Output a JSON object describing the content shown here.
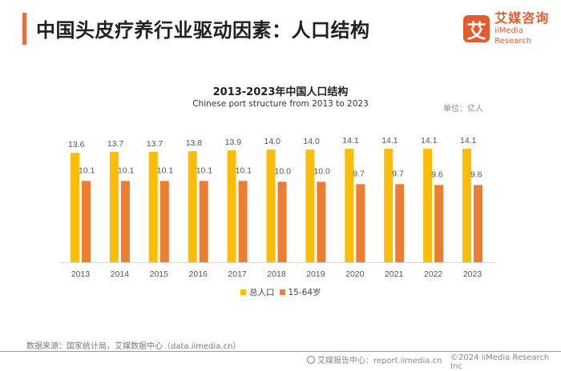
{
  "header": {
    "title": "中国头皮疗养行业驱动因素：人口结构",
    "accent_color": "#ef6a3a"
  },
  "logo": {
    "mark": "艾",
    "name_cn": "艾媒咨询",
    "name_en": "iiMedia Research",
    "color": "#e25c2f"
  },
  "chart_data": {
    "type": "bar",
    "title": "2013-2023年中国人口结构",
    "subtitle": "Chinese port structure from 2013 to 2023",
    "unit_label": "单位：亿人",
    "xlabel": "",
    "ylabel": "",
    "ylim": [
      0,
      14.5
    ],
    "grid": false,
    "legend_position": "bottom-center",
    "categories": [
      "2013",
      "2014",
      "2015",
      "2016",
      "2017",
      "2018",
      "2019",
      "2020",
      "2021",
      "2022",
      "2023"
    ],
    "series": [
      {
        "name": "总人口",
        "color": "#fbbd08",
        "values": [
          13.6,
          13.7,
          13.7,
          13.8,
          13.9,
          14.0,
          14.0,
          14.1,
          14.1,
          14.1,
          14.1
        ]
      },
      {
        "name": "15-64岁",
        "color": "#ed7d31",
        "values": [
          10.1,
          10.1,
          10.1,
          10.1,
          10.1,
          10.0,
          10.0,
          9.7,
          9.7,
          9.6,
          9.6
        ]
      }
    ]
  },
  "footer": {
    "source": "数据来源：国家统计局，艾媒数据中心（data.iimedia.cn）",
    "report_center": "艾媒报告中心：report.iimedia.cn",
    "copyright": "©2024  iiMedia Research Inc"
  }
}
